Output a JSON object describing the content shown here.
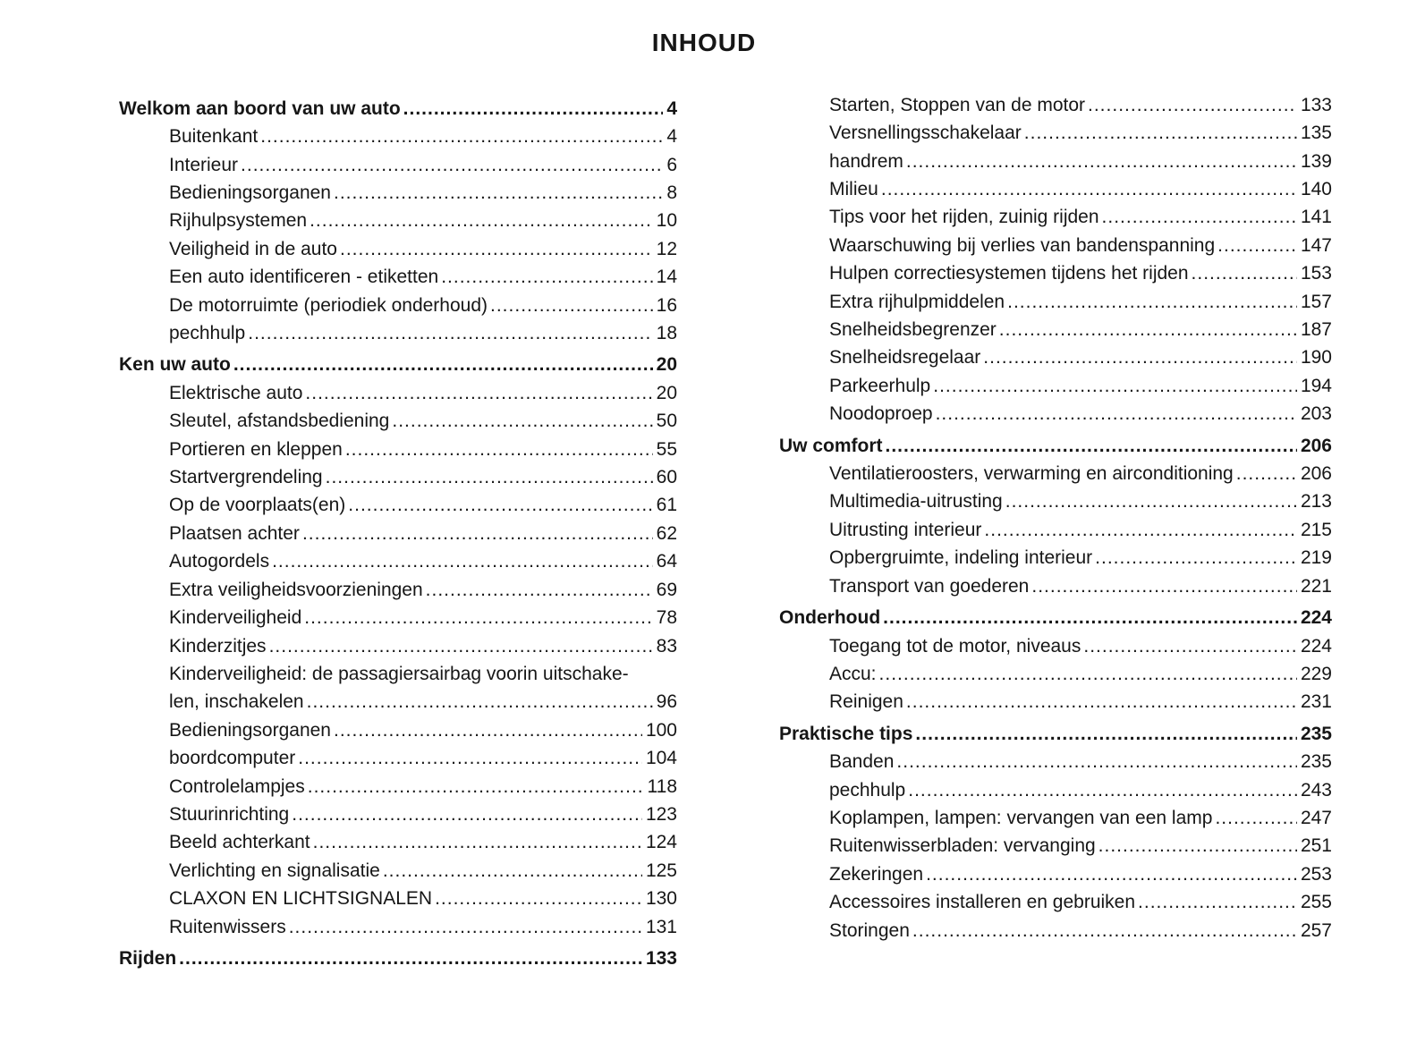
{
  "page_title": "INHOUD",
  "columns": [
    {
      "entries": [
        {
          "label": "Welkom aan boord van uw auto",
          "page": "4",
          "level": "section"
        },
        {
          "label": "Buitenkant",
          "page": "4",
          "level": "sub"
        },
        {
          "label": "Interieur",
          "page": "6",
          "level": "sub"
        },
        {
          "label": "Bedieningsorganen",
          "page": "8",
          "level": "sub"
        },
        {
          "label": "Rijhulpsystemen",
          "page": "10",
          "level": "sub"
        },
        {
          "label": "Veiligheid in de auto",
          "page": "12",
          "level": "sub"
        },
        {
          "label": "Een auto identificeren - etiketten",
          "page": "14",
          "level": "sub"
        },
        {
          "label": "De motorruimte (periodiek onderhoud)",
          "page": "16",
          "level": "sub"
        },
        {
          "label": "pechhulp",
          "page": "18",
          "level": "sub"
        },
        {
          "label": "Ken uw auto",
          "page": "20",
          "level": "section"
        },
        {
          "label": "Elektrische auto",
          "page": "20",
          "level": "sub"
        },
        {
          "label": "Sleutel, afstandsbediening",
          "page": "50",
          "level": "sub"
        },
        {
          "label": "Portieren en kleppen",
          "page": "55",
          "level": "sub"
        },
        {
          "label": "Startvergrendeling",
          "page": "60",
          "level": "sub"
        },
        {
          "label": "Op de voorplaats(en)",
          "page": "61",
          "level": "sub"
        },
        {
          "label": "Plaatsen achter",
          "page": "62",
          "level": "sub"
        },
        {
          "label": "Autogordels",
          "page": "64",
          "level": "sub"
        },
        {
          "label": "Extra veiligheidsvoorzieningen",
          "page": "69",
          "level": "sub"
        },
        {
          "label": "Kinderveiligheid",
          "page": "78",
          "level": "sub"
        },
        {
          "label": "Kinderzitjes",
          "page": "83",
          "level": "sub"
        },
        {
          "label": "Kinderveiligheid: de passagiersairbag voorin uitschake-",
          "page": null,
          "level": "sub"
        },
        {
          "label": "len, inschakelen",
          "page": "96",
          "level": "sub"
        },
        {
          "label": "Bedieningsorganen",
          "page": "100",
          "level": "sub"
        },
        {
          "label": "boordcomputer",
          "page": "104",
          "level": "sub"
        },
        {
          "label": "Controlelampjes",
          "page": "118",
          "level": "sub"
        },
        {
          "label": "Stuurinrichting",
          "page": "123",
          "level": "sub"
        },
        {
          "label": "Beeld achterkant",
          "page": "124",
          "level": "sub"
        },
        {
          "label": "Verlichting en signalisatie",
          "page": "125",
          "level": "sub"
        },
        {
          "label": "CLAXON EN LICHTSIGNALEN",
          "page": "130",
          "level": "sub"
        },
        {
          "label": "Ruitenwissers",
          "page": "131",
          "level": "sub"
        },
        {
          "label": "Rijden",
          "page": "133",
          "level": "section"
        }
      ]
    },
    {
      "entries": [
        {
          "label": "Starten, Stoppen van de motor",
          "page": "133",
          "level": "sub"
        },
        {
          "label": "Versnellingsschakelaar",
          "page": "135",
          "level": "sub"
        },
        {
          "label": "handrem",
          "page": "139",
          "level": "sub"
        },
        {
          "label": "Milieu",
          "page": "140",
          "level": "sub"
        },
        {
          "label": "Tips voor het rijden, zuinig rijden",
          "page": "141",
          "level": "sub"
        },
        {
          "label": "Waarschuwing bij verlies van bandenspanning",
          "page": "147",
          "level": "sub"
        },
        {
          "label": "Hulpen correctiesystemen tijdens het rijden",
          "page": "153",
          "level": "sub"
        },
        {
          "label": "Extra rijhulpmiddelen",
          "page": "157",
          "level": "sub"
        },
        {
          "label": "Snelheidsbegrenzer",
          "page": "187",
          "level": "sub"
        },
        {
          "label": "Snelheidsregelaar",
          "page": "190",
          "level": "sub"
        },
        {
          "label": "Parkeerhulp",
          "page": "194",
          "level": "sub"
        },
        {
          "label": "Noodoproep",
          "page": "203",
          "level": "sub"
        },
        {
          "label": "Uw comfort",
          "page": "206",
          "level": "section"
        },
        {
          "label": "Ventilatieroosters, verwarming en airconditioning",
          "page": "206",
          "level": "sub"
        },
        {
          "label": "Multimedia-uitrusting",
          "page": "213",
          "level": "sub"
        },
        {
          "label": "Uitrusting interieur",
          "page": "215",
          "level": "sub"
        },
        {
          "label": "Opbergruimte, indeling interieur",
          "page": "219",
          "level": "sub"
        },
        {
          "label": "Transport van goederen",
          "page": "221",
          "level": "sub"
        },
        {
          "label": "Onderhoud",
          "page": "224",
          "level": "section"
        },
        {
          "label": "Toegang tot de motor, niveaus",
          "page": "224",
          "level": "sub"
        },
        {
          "label": "Accu:",
          "page": "229",
          "level": "sub"
        },
        {
          "label": "Reinigen",
          "page": "231",
          "level": "sub"
        },
        {
          "label": "Praktische tips",
          "page": "235",
          "level": "section"
        },
        {
          "label": "Banden",
          "page": "235",
          "level": "sub"
        },
        {
          "label": "pechhulp",
          "page": "243",
          "level": "sub"
        },
        {
          "label": "Koplampen, lampen: vervangen van een lamp",
          "page": "247",
          "level": "sub"
        },
        {
          "label": "Ruitenwisserbladen: vervanging",
          "page": "251",
          "level": "sub"
        },
        {
          "label": "Zekeringen",
          "page": "253",
          "level": "sub"
        },
        {
          "label": "Accessoires installeren en gebruiken",
          "page": "255",
          "level": "sub"
        },
        {
          "label": "Storingen",
          "page": "257",
          "level": "sub"
        }
      ]
    }
  ],
  "colors": {
    "background": "#ffffff",
    "text": "#161616"
  }
}
